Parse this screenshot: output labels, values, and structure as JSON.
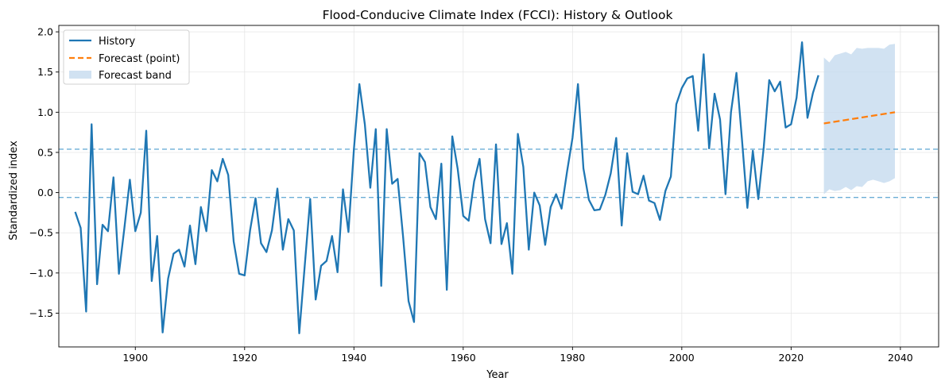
{
  "chart_data": {
    "type": "line",
    "title": "Flood-Conducive Climate Index (FCCI): History & Outlook",
    "xlabel": "Year",
    "ylabel": "Standardized index",
    "xlim": [
      1886,
      2047
    ],
    "ylim": [
      -1.92,
      2.08
    ],
    "x_ticks": [
      1900,
      1920,
      1940,
      1960,
      1980,
      2000,
      2020,
      2040
    ],
    "y_ticks": [
      -1.5,
      -1.0,
      -0.5,
      0.0,
      0.5,
      1.0,
      1.5,
      2.0
    ],
    "x_tick_labels": [
      "1900",
      "1920",
      "1940",
      "1960",
      "1980",
      "2000",
      "2020",
      "2040"
    ],
    "y_tick_labels": [
      "−1.5",
      "−1.0",
      "−0.5",
      "0.0",
      "0.5",
      "1.0",
      "1.5",
      "2.0"
    ],
    "grid": true,
    "legend_position": "top-left",
    "legend": [
      "History",
      "Forecast (point)",
      "Forecast band"
    ],
    "reference_lines": [
      0.54,
      -0.06
    ],
    "colors": {
      "history": "#1f77b4",
      "forecast": "#ff7f0e",
      "band": "#c6dbef",
      "reference": "#6baed6"
    },
    "series": [
      {
        "name": "History",
        "x": [
          1889,
          1890,
          1891,
          1892,
          1893,
          1894,
          1895,
          1896,
          1897,
          1898,
          1899,
          1900,
          1901,
          1902,
          1903,
          1904,
          1905,
          1906,
          1907,
          1908,
          1909,
          1910,
          1911,
          1912,
          1913,
          1914,
          1915,
          1916,
          1917,
          1918,
          1919,
          1920,
          1921,
          1922,
          1923,
          1924,
          1925,
          1926,
          1927,
          1928,
          1929,
          1930,
          1931,
          1932,
          1933,
          1934,
          1935,
          1936,
          1937,
          1938,
          1939,
          1940,
          1941,
          1942,
          1943,
          1944,
          1945,
          1946,
          1947,
          1948,
          1949,
          1950,
          1951,
          1952,
          1953,
          1954,
          1955,
          1956,
          1957,
          1958,
          1959,
          1960,
          1961,
          1962,
          1963,
          1964,
          1965,
          1966,
          1967,
          1968,
          1969,
          1970,
          1971,
          1972,
          1973,
          1974,
          1975,
          1976,
          1977,
          1978,
          1979,
          1980,
          1981,
          1982,
          1983,
          1984,
          1985,
          1986,
          1987,
          1988,
          1989,
          1990,
          1991,
          1992,
          1993,
          1994,
          1995,
          1996,
          1997,
          1998,
          1999,
          2000,
          2001,
          2002,
          2003,
          2004,
          2005,
          2006,
          2007,
          2008,
          2009,
          2010,
          2011,
          2012,
          2013,
          2014,
          2015,
          2016,
          2017,
          2018,
          2019,
          2020,
          2021,
          2022,
          2023,
          2024,
          2025
        ],
        "values": [
          -0.24,
          -0.44,
          -1.48,
          0.85,
          -1.14,
          -0.4,
          -0.48,
          0.19,
          -1.01,
          -0.44,
          0.16,
          -0.48,
          -0.25,
          0.77,
          -1.1,
          -0.54,
          -1.74,
          -1.07,
          -0.76,
          -0.71,
          -0.92,
          -0.41,
          -0.89,
          -0.18,
          -0.48,
          0.28,
          0.14,
          0.42,
          0.22,
          -0.61,
          -1.01,
          -1.03,
          -0.47,
          -0.07,
          -0.63,
          -0.74,
          -0.47,
          0.05,
          -0.71,
          -0.33,
          -0.47,
          -1.75,
          -0.91,
          -0.08,
          -1.33,
          -0.91,
          -0.85,
          -0.54,
          -0.99,
          0.04,
          -0.49,
          0.54,
          1.35,
          0.85,
          0.06,
          0.79,
          -1.16,
          0.79,
          0.11,
          0.17,
          -0.55,
          -1.35,
          -1.61,
          0.49,
          0.38,
          -0.18,
          -0.33,
          0.36,
          -1.21,
          0.7,
          0.29,
          -0.29,
          -0.35,
          0.14,
          0.42,
          -0.33,
          -0.63,
          0.6,
          -0.64,
          -0.38,
          -1.01,
          0.73,
          0.32,
          -0.71,
          0.0,
          -0.16,
          -0.65,
          -0.18,
          -0.02,
          -0.2,
          0.26,
          0.68,
          1.35,
          0.3,
          -0.09,
          -0.22,
          -0.21,
          -0.03,
          0.24,
          0.68,
          -0.41,
          0.49,
          0.01,
          -0.02,
          0.21,
          -0.1,
          -0.13,
          -0.34,
          0.02,
          0.2,
          1.1,
          1.3,
          1.42,
          1.45,
          0.77,
          1.72,
          0.55,
          1.23,
          0.91,
          -0.02,
          1.0,
          1.49,
          0.67,
          -0.19,
          0.52,
          -0.08,
          0.57,
          1.4,
          1.26,
          1.38,
          0.81,
          0.85,
          1.18,
          1.87,
          0.93,
          1.24,
          1.46
        ]
      },
      {
        "name": "Forecast (point)",
        "x": [
          2026,
          2039
        ],
        "values": [
          0.86,
          1.0
        ]
      },
      {
        "name": "Forecast band",
        "x": [
          2026,
          2027,
          2028,
          2029,
          2030,
          2031,
          2032,
          2033,
          2034,
          2035,
          2036,
          2037,
          2038,
          2039
        ],
        "upper": [
          1.68,
          1.62,
          1.71,
          1.73,
          1.75,
          1.72,
          1.8,
          1.79,
          1.8,
          1.8,
          1.8,
          1.79,
          1.84,
          1.85
        ],
        "lower": [
          -0.02,
          0.04,
          0.02,
          0.03,
          0.07,
          0.03,
          0.08,
          0.07,
          0.14,
          0.16,
          0.14,
          0.12,
          0.14,
          0.18
        ]
      }
    ]
  }
}
